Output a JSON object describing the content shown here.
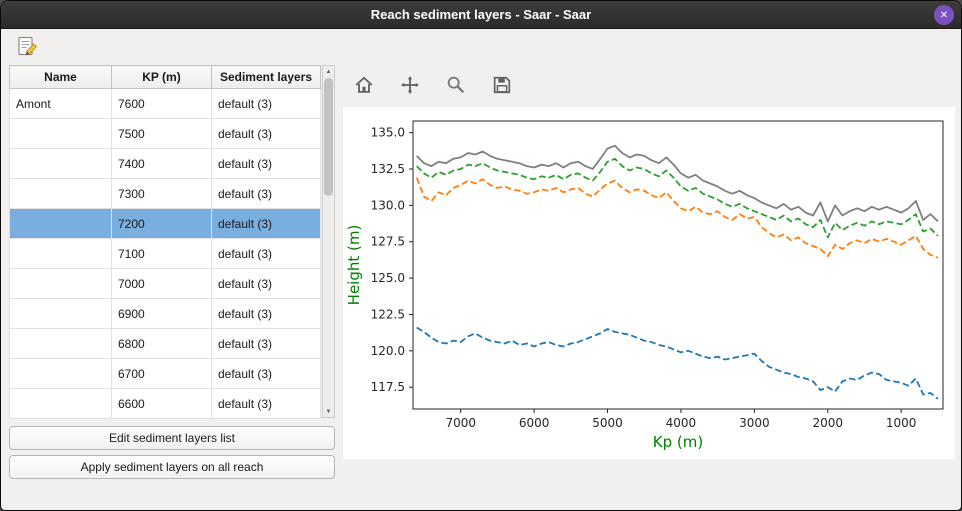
{
  "window": {
    "title": "Reach sediment layers - Saar - Saar"
  },
  "icons": {
    "close": "✕",
    "scroll_up": "▲",
    "scroll_down": "▼"
  },
  "colors": {
    "selection": "#79aede",
    "titlebar_bg": "#3d3c3a",
    "close_button": "#7b51bd",
    "axis_label": "#008000",
    "window_bg": "#f1f0ee"
  },
  "table": {
    "columns": [
      "Name",
      "KP (m)",
      "Sediment layers"
    ],
    "rows": [
      {
        "name": "Amont",
        "kp": "7600",
        "layers": "default (3)",
        "selected": false
      },
      {
        "name": "",
        "kp": "7500",
        "layers": "default (3)",
        "selected": false
      },
      {
        "name": "",
        "kp": "7400",
        "layers": "default (3)",
        "selected": false
      },
      {
        "name": "",
        "kp": "7300",
        "layers": "default (3)",
        "selected": false
      },
      {
        "name": "",
        "kp": "7200",
        "layers": "default (3)",
        "selected": true
      },
      {
        "name": "",
        "kp": "7100",
        "layers": "default (3)",
        "selected": false
      },
      {
        "name": "",
        "kp": "7000",
        "layers": "default (3)",
        "selected": false
      },
      {
        "name": "",
        "kp": "6900",
        "layers": "default (3)",
        "selected": false
      },
      {
        "name": "",
        "kp": "6800",
        "layers": "default (3)",
        "selected": false
      },
      {
        "name": "",
        "kp": "6700",
        "layers": "default (3)",
        "selected": false
      },
      {
        "name": "",
        "kp": "6600",
        "layers": "default (3)",
        "selected": false
      }
    ]
  },
  "actions": {
    "edit_label": "Edit sediment layers list",
    "apply_label": "Apply sediment layers on all reach"
  },
  "plot_toolbar": {
    "icons": [
      "home",
      "pan",
      "zoom",
      "save"
    ]
  },
  "chart_data": {
    "type": "line",
    "title": "",
    "xlabel": "Kp (m)",
    "ylabel": "Height (m)",
    "x_reversed": true,
    "xlim": [
      7650,
      430
    ],
    "ylim": [
      116.0,
      135.8
    ],
    "x_ticks": [
      7000,
      6000,
      5000,
      4000,
      3000,
      2000,
      1000
    ],
    "y_ticks": [
      117.5,
      120.0,
      122.5,
      125.0,
      127.5,
      130.0,
      132.5,
      135.0
    ],
    "grid": false,
    "legend": null,
    "x": [
      7600,
      7500,
      7400,
      7300,
      7200,
      7100,
      7000,
      6900,
      6800,
      6700,
      6600,
      6500,
      6400,
      6300,
      6200,
      6100,
      6000,
      5900,
      5800,
      5700,
      5600,
      5500,
      5400,
      5300,
      5200,
      5100,
      5000,
      4900,
      4800,
      4700,
      4600,
      4500,
      4400,
      4300,
      4200,
      4100,
      4000,
      3900,
      3800,
      3700,
      3600,
      3500,
      3400,
      3300,
      3200,
      3100,
      3000,
      2900,
      2800,
      2700,
      2600,
      2500,
      2400,
      2300,
      2200,
      2100,
      2000,
      1900,
      1800,
      1700,
      1600,
      1500,
      1400,
      1300,
      1200,
      1100,
      1000,
      900,
      800,
      700,
      600,
      500
    ],
    "series": [
      {
        "name": "gray-solid",
        "color": "#7f7f7f",
        "style": "solid",
        "values": [
          133.4,
          132.9,
          132.7,
          133.0,
          132.9,
          133.2,
          133.3,
          133.6,
          133.5,
          133.7,
          133.4,
          133.2,
          133.1,
          133.0,
          132.9,
          132.7,
          132.6,
          132.8,
          132.7,
          132.9,
          132.6,
          132.9,
          133.0,
          132.7,
          132.5,
          133.2,
          133.9,
          134.1,
          133.6,
          133.3,
          133.5,
          133.4,
          133.1,
          132.9,
          133.3,
          132.8,
          132.2,
          131.9,
          132.1,
          131.7,
          131.5,
          131.3,
          131.0,
          130.8,
          131.0,
          130.7,
          130.5,
          130.2,
          130.0,
          129.8,
          130.1,
          129.7,
          129.9,
          129.5,
          129.3,
          130.2,
          128.9,
          130.0,
          129.3,
          129.6,
          129.8,
          129.6,
          129.9,
          129.7,
          129.9,
          129.7,
          129.5,
          129.8,
          130.3,
          129.0,
          129.4,
          128.9
        ]
      },
      {
        "name": "green-dashed",
        "color": "#2ca02c",
        "style": "dashed",
        "values": [
          132.7,
          132.2,
          131.9,
          132.3,
          132.1,
          132.4,
          132.5,
          132.8,
          132.7,
          132.9,
          132.6,
          132.4,
          132.3,
          132.2,
          132.1,
          131.9,
          131.8,
          132.0,
          131.9,
          132.1,
          131.8,
          132.1,
          132.2,
          131.9,
          131.7,
          132.3,
          133.0,
          133.2,
          132.7,
          132.4,
          132.6,
          132.5,
          132.2,
          132.0,
          132.4,
          131.9,
          131.3,
          131.0,
          131.2,
          130.8,
          130.6,
          130.4,
          130.1,
          129.9,
          130.1,
          129.8,
          129.6,
          129.4,
          129.2,
          129.0,
          129.3,
          128.9,
          129.1,
          128.7,
          128.5,
          129.0,
          127.8,
          128.8,
          128.3,
          128.6,
          128.8,
          128.6,
          128.9,
          128.7,
          128.9,
          128.8,
          128.7,
          129.0,
          129.4,
          128.2,
          128.4,
          127.9
        ]
      },
      {
        "name": "orange-dashed",
        "color": "#ff7f0e",
        "style": "dashed",
        "values": [
          131.9,
          130.6,
          130.3,
          130.9,
          130.7,
          131.2,
          131.4,
          131.7,
          131.5,
          131.8,
          131.4,
          131.2,
          131.3,
          131.1,
          131.0,
          130.8,
          130.9,
          131.1,
          131.0,
          131.2,
          130.9,
          131.1,
          131.2,
          130.8,
          130.6,
          131.1,
          131.5,
          131.7,
          131.2,
          130.9,
          131.1,
          131.0,
          130.7,
          130.5,
          130.9,
          130.3,
          129.8,
          129.6,
          129.9,
          129.5,
          129.4,
          129.6,
          129.2,
          129.0,
          129.4,
          129.1,
          129.2,
          128.5,
          128.1,
          127.8,
          128.0,
          127.6,
          127.8,
          127.4,
          127.2,
          127.0,
          126.5,
          127.3,
          127.0,
          127.4,
          127.6,
          127.4,
          127.7,
          127.5,
          127.7,
          127.5,
          127.3,
          127.6,
          127.9,
          127.0,
          126.6,
          126.4
        ]
      },
      {
        "name": "blue-dashed",
        "color": "#1f77b4",
        "style": "dashed",
        "values": [
          121.6,
          121.3,
          120.9,
          120.6,
          120.5,
          120.7,
          120.6,
          121.0,
          121.2,
          120.9,
          120.7,
          120.6,
          120.5,
          120.7,
          120.4,
          120.5,
          120.3,
          120.5,
          120.6,
          120.4,
          120.3,
          120.5,
          120.6,
          120.8,
          121.0,
          121.2,
          121.5,
          121.3,
          121.2,
          121.1,
          120.9,
          120.7,
          120.6,
          120.4,
          120.3,
          120.1,
          119.9,
          120.0,
          119.8,
          119.6,
          119.5,
          119.6,
          119.4,
          119.5,
          119.6,
          119.7,
          119.8,
          119.3,
          118.9,
          118.7,
          118.5,
          118.4,
          118.2,
          118.1,
          117.9,
          117.3,
          117.5,
          117.2,
          117.9,
          118.1,
          118.0,
          118.3,
          118.5,
          118.4,
          118.0,
          117.9,
          117.8,
          117.6,
          118.1,
          117.0,
          117.1,
          116.7
        ]
      }
    ]
  }
}
